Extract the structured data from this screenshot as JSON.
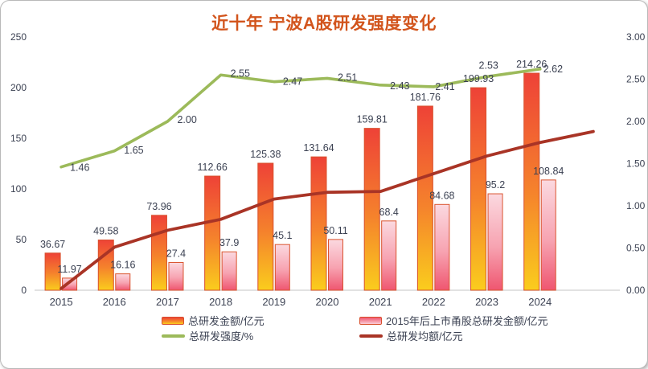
{
  "header": {
    "title": "近十年 宁波A股研发强度变化"
  },
  "colors": {
    "title": "#d2541c",
    "label_text": "#3b4152",
    "axis_line": "#d9d9d9",
    "bar_total_top": "#ee4237",
    "bar_total_mid": "#f5832c",
    "bar_total_bottom": "#facd1d",
    "bar_total_border": "#d8502c",
    "bar_post2015_top": "#fbd9e0",
    "bar_post2015_mid": "#f7a3b1",
    "bar_post2015_bottom": "#ef5670",
    "bar_post2015_border": "#da542f",
    "line_intensity": "#9cba5a",
    "line_average": "#a93426"
  },
  "legend": {
    "items": [
      {
        "label": "总研发金额/亿元",
        "swatch": "bar-orange"
      },
      {
        "label": "2015年后上市甬股总研发金额/亿元",
        "swatch": "bar-pink"
      },
      {
        "label": "总研发强度/%",
        "swatch": "line-green"
      },
      {
        "label": "总研发均额/亿元",
        "swatch": "line-darkred"
      }
    ]
  },
  "chart_data": {
    "type": "combo (bar + line, dual axis)",
    "title": "近十年 宁波A股研发强度变化",
    "categories": [
      "2015",
      "2016",
      "2017",
      "2018",
      "2019",
      "2020",
      "2021",
      "2022",
      "2023",
      "2024"
    ],
    "series": [
      {
        "name": "总研发金额/亿元",
        "type": "bar",
        "axis": "left",
        "values": [
          36.67,
          49.58,
          73.96,
          112.66,
          125.38,
          131.64,
          159.81,
          181.76,
          199.93,
          214.26
        ],
        "labels": [
          "36.67",
          "49.58",
          "73.96",
          "112.66",
          "125.38",
          "131.64",
          "159.81",
          "181.76",
          "199.93",
          "214.26"
        ]
      },
      {
        "name": "2015年后上市甬股总研发金额/亿元",
        "type": "bar",
        "axis": "left",
        "values": [
          11.97,
          16.16,
          27.4,
          37.9,
          45.1,
          50.11,
          68.4,
          84.68,
          95.2,
          108.84
        ],
        "labels": [
          "11.97",
          "16.16",
          "27.4",
          "37.9",
          "45.1",
          "50.11",
          "68.4",
          "84.68",
          "95.2",
          "108.84"
        ]
      },
      {
        "name": "总研发强度/%",
        "type": "line",
        "axis": "right",
        "values": [
          1.46,
          1.65,
          2.0,
          2.55,
          2.47,
          2.51,
          2.43,
          2.41,
          2.53,
          2.62
        ],
        "labels": [
          "1.46",
          "1.65",
          "2.00",
          "2.55",
          "2.47",
          "2.51",
          "2.43",
          "2.41",
          "2.53",
          "2.62"
        ]
      },
      {
        "name": "总研发均额/亿元",
        "type": "line",
        "axis": "right",
        "labels_shown": false,
        "values_note": "no data labels shown in chart; values estimated from line position",
        "values": [
          0.02,
          0.51,
          0.71,
          0.84,
          1.08,
          1.16,
          1.17,
          1.38,
          1.59,
          1.75
        ],
        "extension": {
          "value": 1.88,
          "note": "line continues one category width beyond 2024"
        }
      }
    ],
    "left_axis": {
      "ticks": [
        "0",
        "50",
        "100",
        "150",
        "200",
        "250"
      ],
      "range": [
        0,
        250
      ]
    },
    "right_axis": {
      "ticks": [
        "0.00",
        "0.50",
        "1.00",
        "1.50",
        "2.00",
        "2.50",
        "3.00"
      ],
      "range": [
        0,
        3
      ]
    },
    "legend_position": "bottom",
    "gridlines": false
  }
}
